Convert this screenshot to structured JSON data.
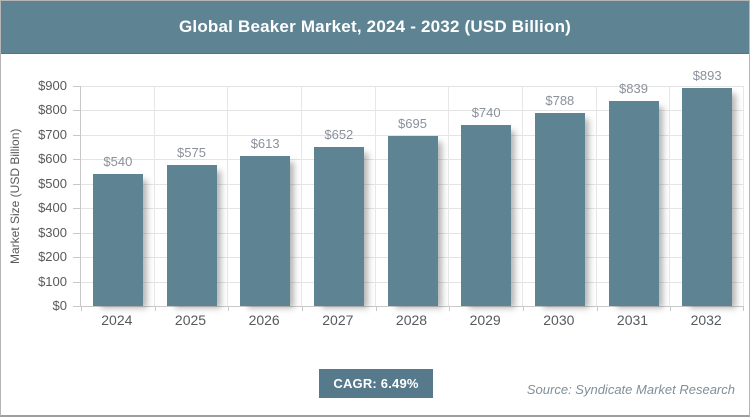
{
  "header": {
    "title": "Global Beaker Market, 2024 - 2032 (USD Billion)"
  },
  "chart_data": {
    "type": "bar",
    "title": "Global Beaker Market, 2024 - 2032 (USD Billion)",
    "categories": [
      "2024",
      "2025",
      "2026",
      "2027",
      "2028",
      "2029",
      "2030",
      "2031",
      "2032"
    ],
    "values": [
      540,
      575,
      613,
      652,
      695,
      740,
      788,
      839,
      893
    ],
    "value_labels": [
      "$540",
      "$575",
      "$613",
      "$652",
      "$695",
      "$740",
      "$788",
      "$839",
      "$893"
    ],
    "xlabel": "",
    "ylabel": "Market Size (USD Billion)",
    "ylim": [
      0,
      900
    ],
    "ytick_step": 100,
    "ytick_labels": [
      "$0",
      "$100",
      "$200",
      "$300",
      "$400",
      "$500",
      "$600",
      "$700",
      "$800",
      "$900"
    ],
    "grid": true,
    "legend": "none",
    "bar_color": "#5e8494"
  },
  "footer": {
    "cagr_label": "CAGR: 6.49%",
    "source": "Source: Syndicate Market Research"
  },
  "colors": {
    "accent": "#5e8494",
    "badge_bg": "#56798b",
    "grid": "#e4e4e4",
    "axis": "#c8c8c8",
    "tick_label": "#58595b",
    "value_label": "#8a919b",
    "header_text": "#ffffff",
    "source_text": "#7f8f9a"
  }
}
